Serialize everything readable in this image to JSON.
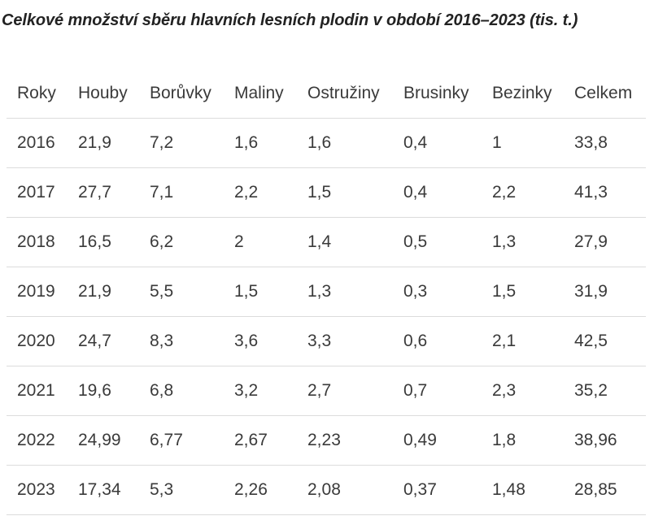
{
  "title": "Celkové množství sběru hlavních lesních plodin v období 2016–2023 (tis. t.)",
  "table": {
    "headers": [
      "Roky",
      "Houby",
      "Borůvky",
      "Maliny",
      "Ostružiny",
      "Brusinky",
      "Bezinky",
      "Celkem"
    ],
    "rows": [
      [
        "2016",
        "21,9",
        "7,2",
        "1,6",
        "1,6",
        "0,4",
        "1",
        "33,8"
      ],
      [
        "2017",
        "27,7",
        "7,1",
        "2,2",
        "1,5",
        "0,4",
        "2,2",
        "41,3"
      ],
      [
        "2018",
        "16,5",
        "6,2",
        "2",
        "1,4",
        "0,5",
        "1,3",
        "27,9"
      ],
      [
        "2019",
        "21,9",
        "5,5",
        "1,5",
        "1,3",
        "0,3",
        "1,5",
        "31,9"
      ],
      [
        "2020",
        "24,7",
        "8,3",
        "3,6",
        "3,3",
        "0,6",
        "2,1",
        "42,5"
      ],
      [
        "2021",
        "19,6",
        "6,8",
        "3,2",
        "2,7",
        "0,7",
        "2,3",
        "35,2"
      ],
      [
        "2022",
        "24,99",
        "6,77",
        "2,67",
        "2,23",
        "0,49",
        "1,8",
        "38,96"
      ],
      [
        "2023",
        "17,34",
        "5,3",
        "2,26",
        "2,08",
        "0,37",
        "1,48",
        "28,85"
      ]
    ]
  }
}
